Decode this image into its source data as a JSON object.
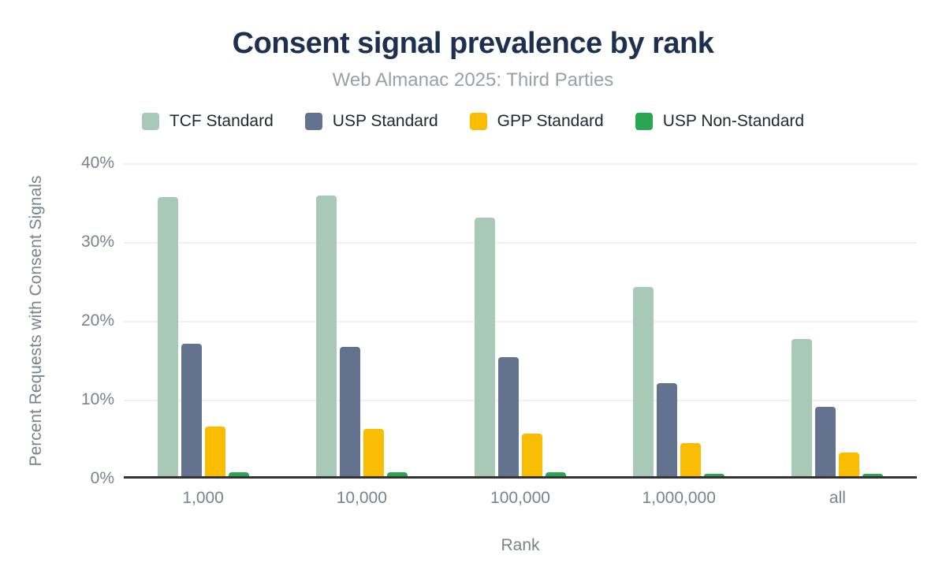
{
  "header": {
    "title": "Consent signal prevalence by rank",
    "subtitle": "Web Almanac 2025: Third Parties"
  },
  "chart_data": {
    "type": "bar",
    "title": "Consent signal prevalence by rank",
    "subtitle": "Web Almanac 2025: Third Parties",
    "categories": [
      "1,000",
      "10,000",
      "100,000",
      "1,000,000",
      "all"
    ],
    "series": [
      {
        "name": "TCF Standard",
        "color": "#a8c9b8",
        "values": [
          35.4,
          35.6,
          32.8,
          24.0,
          17.4
        ]
      },
      {
        "name": "USP Standard",
        "color": "#63728f",
        "values": [
          16.8,
          16.4,
          15.1,
          11.8,
          8.8
        ]
      },
      {
        "name": "GPP Standard",
        "color": "#f9bc02",
        "values": [
          6.3,
          6.0,
          5.4,
          4.2,
          3.0
        ]
      },
      {
        "name": "USP Non-Standard",
        "color": "#2aa652",
        "values": [
          0.5,
          0.5,
          0.5,
          0.3,
          0.3
        ]
      }
    ],
    "xlabel": "Rank",
    "ylabel": "Percent Requests with Consent Signals",
    "ylim": [
      0,
      40
    ],
    "yticks": [
      40,
      30,
      20,
      10,
      0
    ],
    "ytick_labels": [
      "40%",
      "30%",
      "20%",
      "10%",
      "0%"
    ],
    "grid": true,
    "legend_position": "top"
  },
  "colors": {
    "title_text": "#1e3050",
    "subtitle_text": "#9aa0a6",
    "axis_text": "#7a828b",
    "legend_text": "#1f2733",
    "axis_line": "#333333",
    "gridline": "#f1f1f1",
    "background": "#ffffff"
  }
}
